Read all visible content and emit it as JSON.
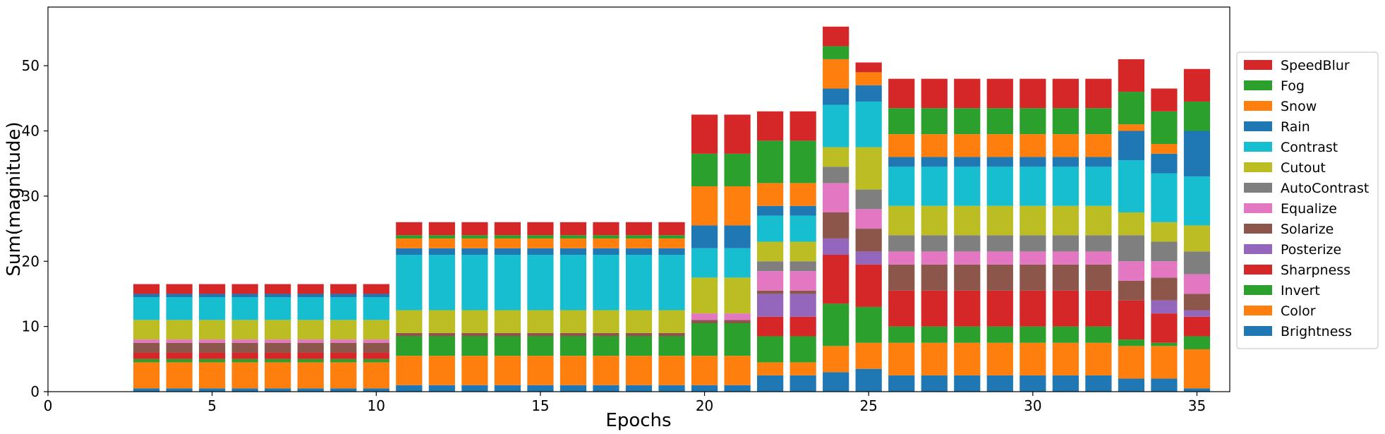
{
  "chart_data": {
    "type": "bar",
    "stacked": true,
    "xlabel": "Epochs",
    "ylabel": "Sum(magnitude)",
    "xlim": [
      0,
      36
    ],
    "ylim": [
      0,
      59
    ],
    "xticks": [
      0,
      5,
      10,
      15,
      20,
      25,
      30,
      35
    ],
    "yticks": [
      0,
      10,
      20,
      30,
      40,
      50
    ],
    "grid": false,
    "legend_position": "right",
    "x": [
      3,
      4,
      5,
      6,
      7,
      8,
      9,
      10,
      11,
      12,
      13,
      14,
      15,
      16,
      17,
      18,
      19,
      20,
      21,
      22,
      23,
      24,
      25,
      26,
      27,
      28,
      29,
      30,
      31,
      32,
      33,
      34,
      35
    ],
    "series": [
      {
        "name": "Brightness",
        "color": "#1f77b4",
        "values": [
          0.5,
          0.5,
          0.5,
          0.5,
          0.5,
          0.5,
          0.5,
          0.5,
          1,
          1,
          1,
          1,
          1,
          1,
          1,
          1,
          1,
          1,
          1,
          2.5,
          2.5,
          3,
          3.5,
          2.5,
          2.5,
          2.5,
          2.5,
          2.5,
          2.5,
          2.5,
          2,
          2,
          0.5
        ]
      },
      {
        "name": "Color",
        "color": "#ff7f0e",
        "values": [
          4,
          4,
          4,
          4,
          4,
          4,
          4,
          4,
          4.5,
          4.5,
          4.5,
          4.5,
          4.5,
          4.5,
          4.5,
          4.5,
          4.5,
          4.5,
          4.5,
          2,
          2,
          4,
          4,
          5,
          5,
          5,
          5,
          5,
          5,
          5,
          5,
          5,
          6
        ]
      },
      {
        "name": "Invert",
        "color": "#2ca02c",
        "values": [
          0.5,
          0.5,
          0.5,
          0.5,
          0.5,
          0.5,
          0.5,
          0.5,
          3,
          3,
          3,
          3,
          3,
          3,
          3,
          3,
          3,
          5,
          5,
          4,
          4,
          6.5,
          5.5,
          2.5,
          2.5,
          2.5,
          2.5,
          2.5,
          2.5,
          2.5,
          1,
          0.5,
          2
        ]
      },
      {
        "name": "Sharpness",
        "color": "#d62728",
        "values": [
          1,
          1,
          1,
          1,
          1,
          1,
          1,
          1,
          0,
          0,
          0,
          0,
          0,
          0,
          0,
          0,
          0,
          0,
          0,
          3,
          3,
          7.5,
          6.5,
          5.5,
          5.5,
          5.5,
          5.5,
          5.5,
          5.5,
          5.5,
          6,
          4.5,
          3
        ]
      },
      {
        "name": "Posterize",
        "color": "#9467bd",
        "values": [
          0,
          0,
          0,
          0,
          0,
          0,
          0,
          0,
          0,
          0,
          0,
          0,
          0,
          0,
          0,
          0,
          0,
          0,
          0,
          3.5,
          3.5,
          2.5,
          2,
          0,
          0,
          0,
          0,
          0,
          0,
          0,
          0,
          2,
          1
        ]
      },
      {
        "name": "Solarize",
        "color": "#8c564b",
        "values": [
          1.5,
          1.5,
          1.5,
          1.5,
          1.5,
          1.5,
          1.5,
          1.5,
          0.5,
          0.5,
          0.5,
          0.5,
          0.5,
          0.5,
          0.5,
          0.5,
          0.5,
          0.5,
          0.5,
          0.5,
          0.5,
          4,
          3.5,
          4,
          4,
          4,
          4,
          4,
          4,
          4,
          3,
          3.5,
          2.5
        ]
      },
      {
        "name": "Equalize",
        "color": "#e377c2",
        "values": [
          0.5,
          0.5,
          0.5,
          0.5,
          0.5,
          0.5,
          0.5,
          0.5,
          0,
          0,
          0,
          0,
          0,
          0,
          0,
          0,
          0,
          1,
          1,
          3,
          3,
          4.5,
          3,
          2,
          2,
          2,
          2,
          2,
          2,
          2,
          3,
          2.5,
          3
        ]
      },
      {
        "name": "AutoContrast",
        "color": "#7f7f7f",
        "values": [
          0,
          0,
          0,
          0,
          0,
          0,
          0,
          0,
          0,
          0,
          0,
          0,
          0,
          0,
          0,
          0,
          0,
          0,
          0,
          1.5,
          1.5,
          2.5,
          3,
          2.5,
          2.5,
          2.5,
          2.5,
          2.5,
          2.5,
          2.5,
          4,
          3,
          3.5
        ]
      },
      {
        "name": "Cutout",
        "color": "#bcbd22",
        "values": [
          3,
          3,
          3,
          3,
          3,
          3,
          3,
          3,
          3.5,
          3.5,
          3.5,
          3.5,
          3.5,
          3.5,
          3.5,
          3.5,
          3.5,
          5.5,
          5.5,
          3,
          3,
          3,
          6.5,
          4.5,
          4.5,
          4.5,
          4.5,
          4.5,
          4.5,
          4.5,
          3.5,
          3,
          4
        ]
      },
      {
        "name": "Contrast",
        "color": "#17becf",
        "values": [
          3.5,
          3.5,
          3.5,
          3.5,
          3.5,
          3.5,
          3.5,
          3.5,
          8.5,
          8.5,
          8.5,
          8.5,
          8.5,
          8.5,
          8.5,
          8.5,
          8.5,
          4.5,
          4.5,
          4,
          4,
          6.5,
          7,
          6,
          6,
          6,
          6,
          6,
          6,
          6,
          8,
          7.5,
          7.5
        ]
      },
      {
        "name": "Rain",
        "color": "#1f77b4",
        "values": [
          0.5,
          0.5,
          0.5,
          0.5,
          0.5,
          0.5,
          0.5,
          0.5,
          1,
          1,
          1,
          1,
          1,
          1,
          1,
          1,
          1,
          3.5,
          3.5,
          1.5,
          1.5,
          2.5,
          2.5,
          1.5,
          1.5,
          1.5,
          1.5,
          1.5,
          1.5,
          1.5,
          4.5,
          3,
          7
        ]
      },
      {
        "name": "Snow",
        "color": "#ff7f0e",
        "values": [
          0,
          0,
          0,
          0,
          0,
          0,
          0,
          0,
          1.5,
          1.5,
          1.5,
          1.5,
          1.5,
          1.5,
          1.5,
          1.5,
          1.5,
          6,
          6,
          3.5,
          3.5,
          4.5,
          2,
          3.5,
          3.5,
          3.5,
          3.5,
          3.5,
          3.5,
          3.5,
          1,
          1.5,
          0
        ]
      },
      {
        "name": "Fog",
        "color": "#2ca02c",
        "values": [
          0,
          0,
          0,
          0,
          0,
          0,
          0,
          0,
          0.5,
          0.5,
          0.5,
          0.5,
          0.5,
          0.5,
          0.5,
          0.5,
          0.5,
          5,
          5,
          6.5,
          6.5,
          2,
          0,
          4,
          4,
          4,
          4,
          4,
          4,
          4,
          5,
          5,
          4.5
        ]
      },
      {
        "name": "SpeedBlur",
        "color": "#d62728",
        "values": [
          1.5,
          1.5,
          1.5,
          1.5,
          1.5,
          1.5,
          1.5,
          1.5,
          2,
          2,
          2,
          2,
          2,
          2,
          2,
          2,
          2,
          6,
          6,
          4.5,
          4.5,
          3,
          1.5,
          4.5,
          4.5,
          4.5,
          4.5,
          4.5,
          4.5,
          4.5,
          5,
          3.5,
          5
        ]
      }
    ]
  }
}
